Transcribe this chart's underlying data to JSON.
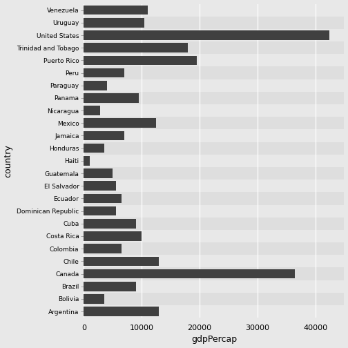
{
  "countries": [
    "Argentina",
    "Bolivia",
    "Brazil",
    "Canada",
    "Chile",
    "Colombia",
    "Costa Rica",
    "Cuba",
    "Dominican Republic",
    "Ecuador",
    "El Salvador",
    "Guatemala",
    "Haiti",
    "Honduras",
    "Jamaica",
    "Mexico",
    "Nicaragua",
    "Panama",
    "Paraguay",
    "Peru",
    "Puerto Rico",
    "Trinidad and Tobago",
    "United States",
    "Uruguay",
    "Venezuela"
  ],
  "gdp_values": [
    13000,
    3500,
    9000,
    36500,
    13000,
    6500,
    10000,
    9000,
    5500,
    6500,
    5500,
    5000,
    1000,
    3500,
    7000,
    12500,
    2800,
    9500,
    4000,
    7000,
    19500,
    18000,
    42500,
    10500,
    11000
  ],
  "bar_color": "#404040",
  "fig_background": "#e8e8e8",
  "panel_background": "#e8e8e8",
  "grid_color": "#ffffff",
  "xlabel": "gdpPercap",
  "ylabel": "country",
  "xlim": [
    0,
    45000
  ],
  "xticks": [
    0,
    10000,
    20000,
    30000,
    40000
  ],
  "bar_height": 0.75
}
